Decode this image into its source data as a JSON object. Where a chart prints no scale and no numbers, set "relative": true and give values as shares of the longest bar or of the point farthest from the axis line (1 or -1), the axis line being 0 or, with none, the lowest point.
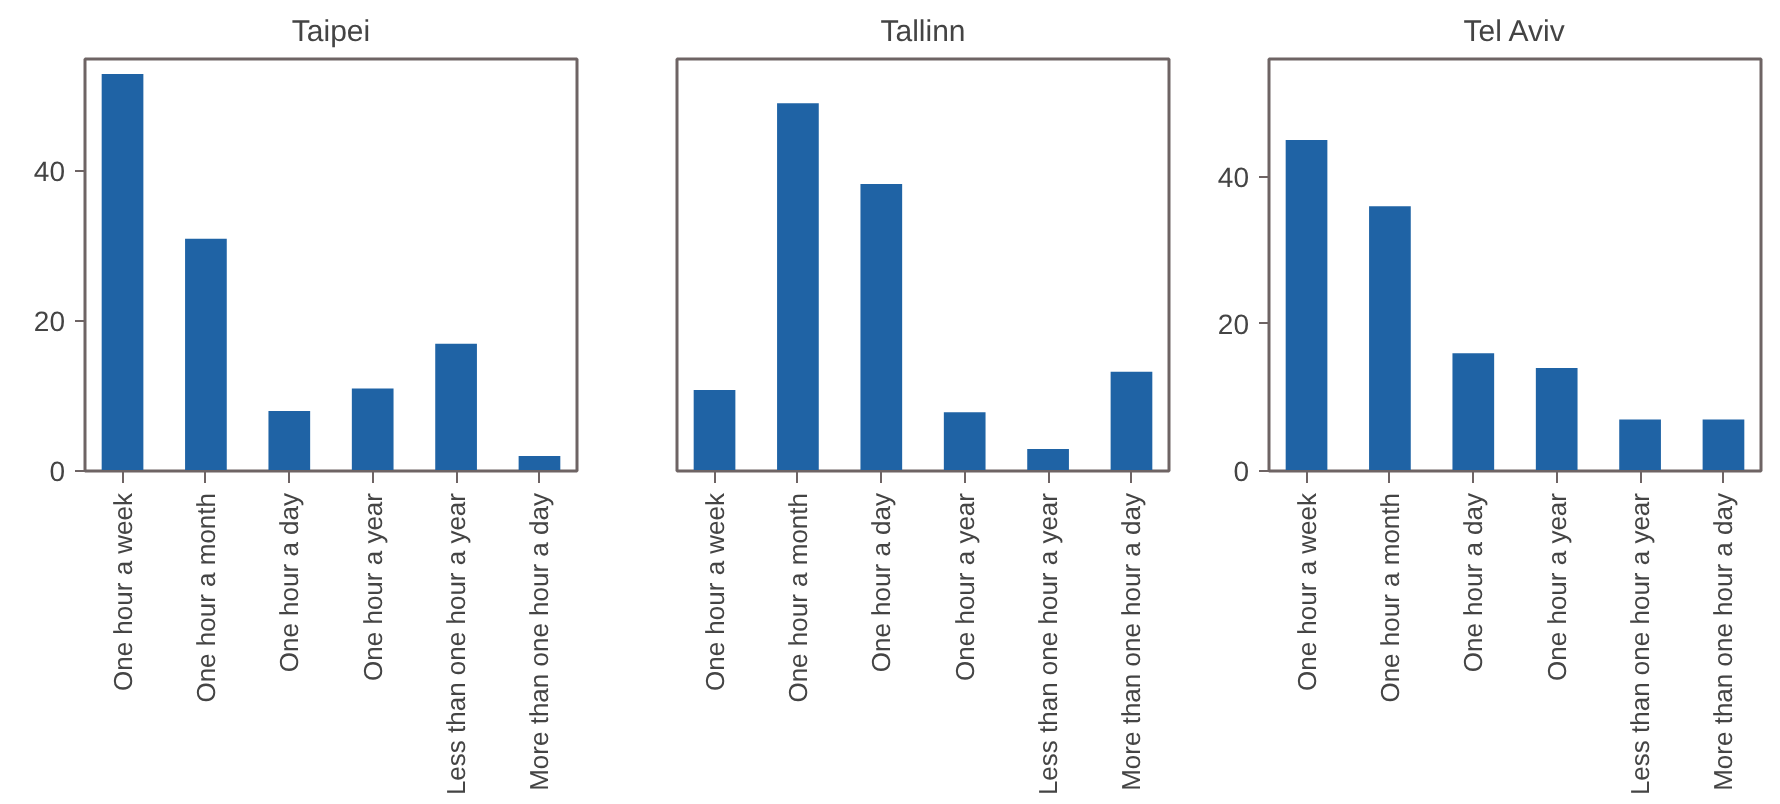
{
  "chart_data": [
    {
      "type": "bar",
      "title": "Taipei",
      "categories": [
        "One hour a week",
        "One hour a month",
        "One hour a day",
        "One hour a year",
        "Less than one hour a year",
        "More than one hour a day"
      ],
      "values": [
        53,
        31,
        8,
        11,
        17,
        2
      ],
      "color": "#1f63a5",
      "ylim": [
        0,
        55
      ],
      "yticks": [
        0,
        20,
        40
      ],
      "grid": false
    },
    {
      "type": "bar",
      "title": "Tallinn",
      "categories": [
        "One hour a week",
        "One hour a month",
        "One hour a day",
        "One hour a year",
        "Less than one hour a year",
        "More than one hour a day"
      ],
      "values": [
        0.22,
        1,
        0.78,
        0.16,
        0.06,
        0.27
      ],
      "color": "#1f63a5",
      "relative": true,
      "grid": false
    },
    {
      "type": "bar",
      "title": "Tel Aviv",
      "categories": [
        "One hour a week",
        "One hour a month",
        "One hour a day",
        "One hour a year",
        "Less than one hour a year",
        "More than one hour a day"
      ],
      "values": [
        45,
        36,
        16,
        14,
        7,
        7
      ],
      "color": "#1f63a5",
      "ylim": [
        0,
        56
      ],
      "yticks": [
        0,
        20,
        40
      ],
      "grid": false
    }
  ]
}
